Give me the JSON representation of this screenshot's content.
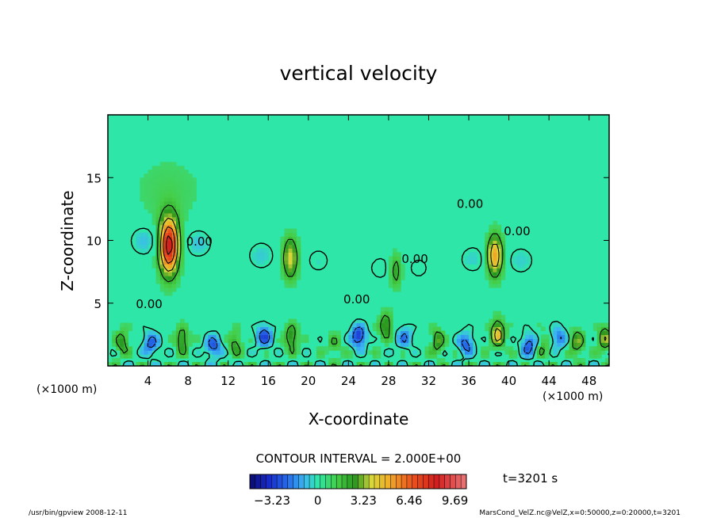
{
  "chart_data": {
    "type": "heatmap",
    "title": "vertical velocity",
    "xlabel": "X-coordinate",
    "ylabel": "Z-coordinate",
    "x_unit_left": "(×1000 m)",
    "x_unit_right": "(×1000 m)",
    "xlim": [
      0,
      50
    ],
    "ylim": [
      0,
      20
    ],
    "x_ticks": [
      4,
      8,
      12,
      16,
      20,
      24,
      28,
      32,
      36,
      40,
      44,
      48
    ],
    "y_ticks": [
      5,
      10,
      15
    ],
    "contour_interval_label": "CONTOUR INTERVAL = 2.000E+00",
    "contour_labels": [
      {
        "x": 23.5,
        "z": 5.0,
        "text": "0.00"
      },
      {
        "x": 29.3,
        "z": 8.2,
        "text": "0.00"
      },
      {
        "x": 39.5,
        "z": 10.4,
        "text": "0.00"
      },
      {
        "x": 34.8,
        "z": 12.6,
        "text": "0.00"
      },
      {
        "x": 2.8,
        "z": 4.6,
        "text": "0.00"
      },
      {
        "x": 7.8,
        "z": 9.6,
        "text": "0.00"
      }
    ],
    "colorbar": {
      "min": -4.8,
      "max": 10.5,
      "tick_values": [
        -3.23,
        0,
        3.23,
        6.46,
        9.69
      ],
      "tick_labels": [
        "−3.23",
        "0",
        "3.23",
        "6.46",
        "9.69"
      ]
    },
    "time_label": "t=3201 s"
  },
  "footer": {
    "left": "/usr/bin/gpview   2008-12-11",
    "right": "MarsCond_VelZ.nc@VelZ,x=0:50000,z=0:20000,t=3201"
  },
  "colors": {
    "background_field": "#2ee6a8",
    "updraft_core": "#e8201e",
    "downdraft": "#1f3fd8",
    "contour_line": "#000000"
  }
}
